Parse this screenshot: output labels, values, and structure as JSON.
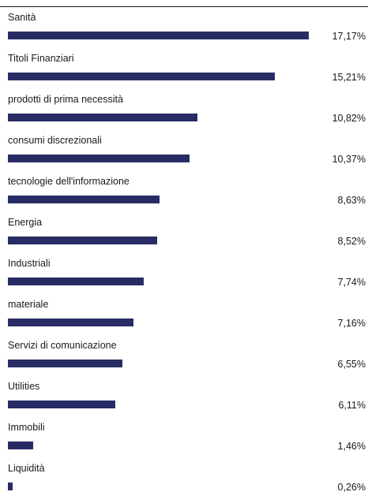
{
  "chart_data": {
    "type": "bar",
    "orientation": "horizontal",
    "categories": [
      "Sanità",
      "Titoli Finanziari",
      "prodotti di prima necessità",
      "consumi discrezionali",
      "tecnologie dell'informazione",
      "Energia",
      "Industriali",
      "materiale",
      "Servizi di comunicazione",
      "Utilities",
      "Immobili",
      "Liquidità"
    ],
    "values": [
      17.17,
      15.21,
      10.82,
      10.37,
      8.63,
      8.52,
      7.74,
      7.16,
      6.55,
      6.11,
      1.46,
      0.26
    ],
    "value_labels": [
      "17,17%",
      "15,21%",
      "10,82%",
      "10,37%",
      "8,63%",
      "8,52%",
      "7,74%",
      "7,16%",
      "6,55%",
      "6,11%",
      "1,46%",
      "0,26%"
    ],
    "title": "",
    "xlabel": "",
    "ylabel": "",
    "xlim": [
      0,
      20
    ],
    "grid": false,
    "bar_color": "#282c64"
  }
}
